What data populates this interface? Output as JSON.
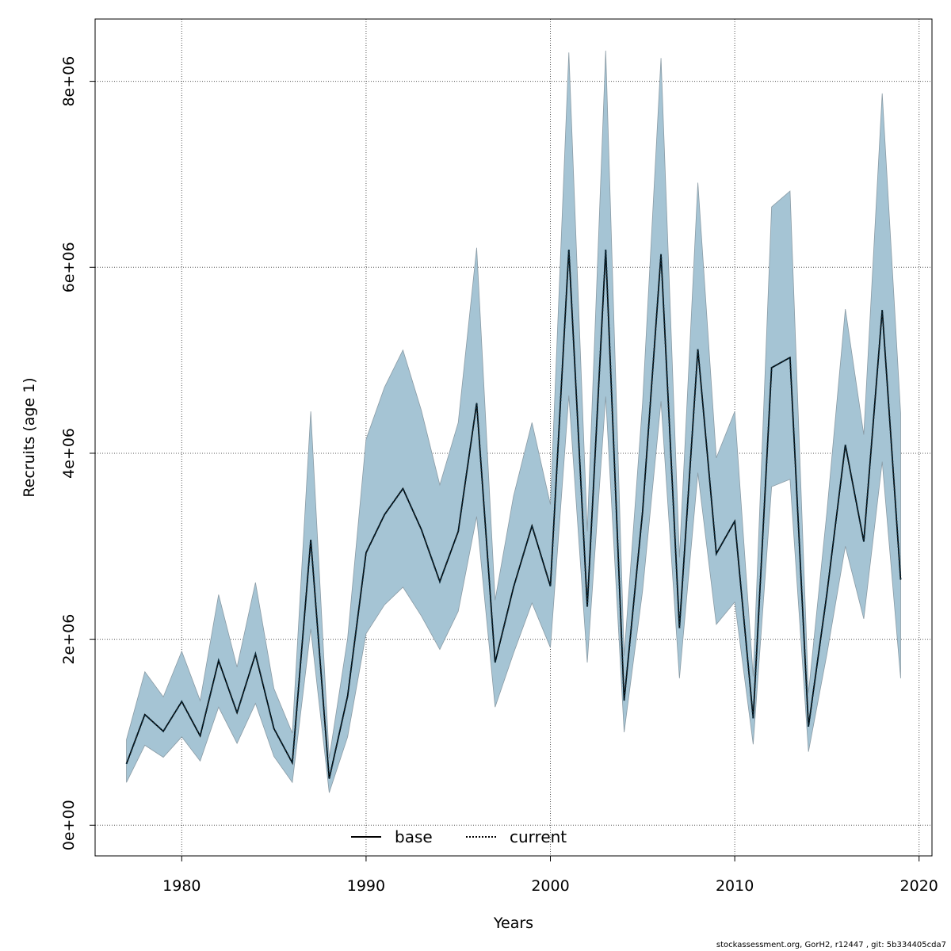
{
  "chart_data": {
    "type": "line",
    "xlabel": "Years",
    "ylabel": "Recruits (age 1)",
    "xlim": [
      1975.3,
      2020.7
    ],
    "ylim": [
      -330000,
      8670000
    ],
    "x_ticks": [
      1980,
      1990,
      2000,
      2010,
      2020
    ],
    "x_tick_labels": [
      "1980",
      "1990",
      "2000",
      "2010",
      "2020"
    ],
    "y_ticks": [
      0,
      2000000,
      4000000,
      6000000,
      8000000
    ],
    "y_tick_labels": [
      "0e+00",
      "2e+06",
      "4e+06",
      "6e+06",
      "8e+06"
    ],
    "grid": true,
    "legend_position": "bottom-center",
    "legend": [
      {
        "label": "base",
        "style": "solid",
        "color": "#000000"
      },
      {
        "label": "current",
        "style": "dotted",
        "color": "#000000"
      }
    ],
    "x": [
      1977,
      1978,
      1979,
      1980,
      1981,
      1982,
      1983,
      1984,
      1985,
      1986,
      1987,
      1988,
      1989,
      1990,
      1991,
      1992,
      1993,
      1994,
      1995,
      1996,
      1997,
      1998,
      1999,
      2000,
      2001,
      2002,
      2003,
      2004,
      2005,
      2006,
      2007,
      2008,
      2009,
      2010,
      2011,
      2012,
      2013,
      2014,
      2015,
      2016,
      2017,
      2018,
      2019
    ],
    "series": [
      {
        "name": "base",
        "style": "solid",
        "values": [
          660000,
          1190000,
          1010000,
          1330000,
          960000,
          1770000,
          1210000,
          1840000,
          1040000,
          670000,
          3070000,
          500000,
          1390000,
          2930000,
          3340000,
          3620000,
          3180000,
          2620000,
          3160000,
          4540000,
          1750000,
          2560000,
          3220000,
          2570000,
          6190000,
          2350000,
          6190000,
          1340000,
          3370000,
          6140000,
          2120000,
          5120000,
          2920000,
          3270000,
          1150000,
          4920000,
          5030000,
          1060000,
          2490000,
          4090000,
          3050000,
          5540000,
          2640000
        ]
      },
      {
        "name": "current",
        "style": "dotted",
        "values": [
          660000,
          1190000,
          1010000,
          1330000,
          960000,
          1770000,
          1210000,
          1840000,
          1040000,
          670000,
          3070000,
          500000,
          1390000,
          2930000,
          3340000,
          3620000,
          3180000,
          2620000,
          3160000,
          4540000,
          1750000,
          2560000,
          3220000,
          2570000,
          6190000,
          2350000,
          6190000,
          1340000,
          3370000,
          6140000,
          2120000,
          5120000,
          2920000,
          3270000,
          1150000,
          4920000,
          5030000,
          1060000,
          2490000,
          4090000,
          3050000,
          5540000,
          2640000
        ]
      }
    ],
    "interval_upper": [
      920000,
      1650000,
      1380000,
      1870000,
      1340000,
      2480000,
      1700000,
      2610000,
      1470000,
      990000,
      4450000,
      720000,
      2010000,
      4150000,
      4710000,
      5110000,
      4460000,
      3660000,
      4330000,
      6210000,
      2420000,
      3540000,
      4330000,
      3450000,
      8310000,
      3160000,
      8330000,
      1820000,
      4540000,
      8250000,
      2880000,
      6910000,
      3950000,
      4450000,
      1600000,
      6650000,
      6820000,
      1420000,
      3370000,
      5550000,
      4200000,
      7870000,
      4430000
    ],
    "interval_lower": [
      460000,
      860000,
      730000,
      950000,
      690000,
      1270000,
      880000,
      1310000,
      740000,
      460000,
      2110000,
      350000,
      950000,
      2060000,
      2370000,
      2560000,
      2250000,
      1890000,
      2300000,
      3320000,
      1270000,
      1850000,
      2390000,
      1910000,
      4620000,
      1750000,
      4610000,
      1000000,
      2520000,
      4560000,
      1580000,
      3790000,
      2160000,
      2400000,
      870000,
      3640000,
      3720000,
      790000,
      1840000,
      3000000,
      2220000,
      3910000,
      1580000
    ],
    "interval_color": "#a5c4d4"
  },
  "footer": "stockassessment.org, GorH2, r12447 , git: 5b334405cda7"
}
